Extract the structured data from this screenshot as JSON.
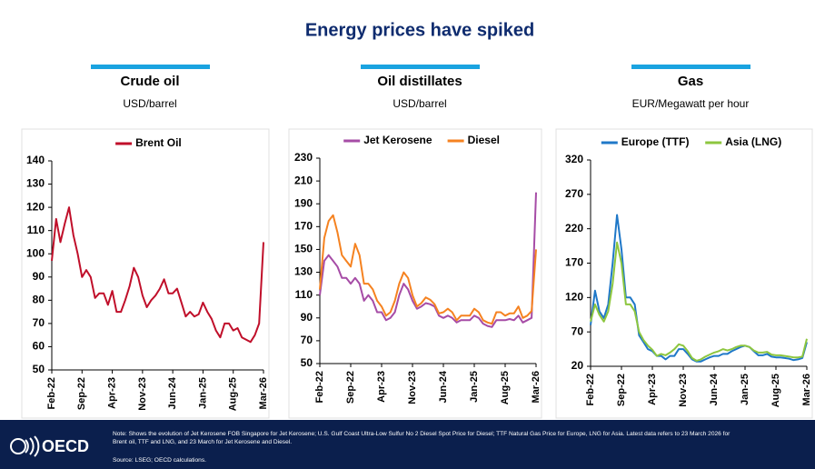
{
  "title": "Energy prices have spiked",
  "footer": {
    "logo": "OECD",
    "note": [
      "Note: Shows the evolution of Jet Kerosene FOB Singapore for Jet Kerosene; U.S. Gulf Coast Ultra-Low Sulfur No 2 Diesel Spot Price for Diesel; TTF Natural Gas Price for Europe, LNG for Asia. Latest data refers to 23 March 2026 for",
      "Brent oil, TTF and LNG, and 23 March for Jet Kerosene and Diesel."
    ],
    "source": "Source: LSEG; OECD calculations."
  },
  "chart_data": [
    {
      "type": "line",
      "title": "Crude oil",
      "subtitle": "USD/barrel",
      "legend": "top",
      "categories": [
        "Feb-22",
        null,
        null,
        null,
        null,
        null,
        null,
        "Sep-22",
        null,
        null,
        null,
        null,
        null,
        null,
        "Apr-23",
        null,
        null,
        null,
        null,
        null,
        null,
        "Nov-23",
        null,
        null,
        null,
        null,
        null,
        null,
        "Jun-24",
        null,
        null,
        null,
        null,
        null,
        null,
        "Jan-25",
        null,
        null,
        null,
        null,
        null,
        null,
        "Aug-25",
        null,
        null,
        null,
        null,
        null,
        null,
        "Mar-26"
      ],
      "ylim": [
        50,
        140
      ],
      "yticks": [
        50,
        60,
        70,
        80,
        90,
        100,
        110,
        120,
        130,
        140
      ],
      "series": [
        {
          "name": "Brent Oil",
          "color": "#c00f2a",
          "values": [
            97,
            115,
            105,
            113,
            120,
            108,
            100,
            90,
            93,
            90,
            81,
            83,
            83,
            78,
            84,
            75,
            75,
            80,
            86,
            94,
            90,
            82,
            77,
            80,
            82,
            85,
            89,
            83,
            83,
            85,
            79,
            73,
            75,
            73,
            74,
            79,
            75,
            72,
            67,
            64,
            70,
            70,
            67,
            68,
            64,
            63,
            62,
            65,
            70,
            105
          ]
        }
      ]
    },
    {
      "type": "line",
      "title": "Oil distillates",
      "subtitle": "USD/barrel",
      "legend": "top",
      "categories": [
        "Feb-22",
        null,
        null,
        null,
        null,
        null,
        null,
        "Sep-22",
        null,
        null,
        null,
        null,
        null,
        null,
        "Apr-23",
        null,
        null,
        null,
        null,
        null,
        null,
        "Nov-23",
        null,
        null,
        null,
        null,
        null,
        null,
        "Jun-24",
        null,
        null,
        null,
        null,
        null,
        null,
        "Jan-25",
        null,
        null,
        null,
        null,
        null,
        null,
        "Aug-25",
        null,
        null,
        null,
        null,
        null,
        null,
        "Mar-26"
      ],
      "ylim": [
        50,
        230
      ],
      "yticks": [
        50,
        70,
        90,
        110,
        130,
        150,
        170,
        190,
        210,
        230
      ],
      "series": [
        {
          "name": "Jet Kerosene",
          "color": "#a64ca6",
          "values": [
            110,
            140,
            145,
            140,
            135,
            125,
            125,
            120,
            125,
            120,
            105,
            110,
            105,
            95,
            95,
            88,
            90,
            95,
            110,
            120,
            115,
            105,
            98,
            100,
            103,
            102,
            100,
            92,
            90,
            92,
            90,
            86,
            88,
            88,
            88,
            92,
            90,
            85,
            83,
            82,
            88,
            88,
            88,
            89,
            88,
            92,
            86,
            88,
            90,
            200
          ]
        },
        {
          "name": "Diesel",
          "color": "#f58220",
          "values": [
            115,
            160,
            175,
            180,
            165,
            145,
            140,
            135,
            155,
            145,
            120,
            120,
            115,
            105,
            100,
            92,
            95,
            105,
            120,
            130,
            125,
            110,
            100,
            103,
            108,
            106,
            102,
            94,
            95,
            98,
            95,
            88,
            92,
            92,
            92,
            98,
            95,
            88,
            86,
            85,
            95,
            95,
            92,
            94,
            94,
            100,
            90,
            92,
            96,
            150
          ]
        }
      ]
    },
    {
      "type": "line",
      "title": "Gas",
      "subtitle": "EUR/Megawatt per hour",
      "legend": "top",
      "categories": [
        "Feb-22",
        null,
        null,
        null,
        null,
        null,
        null,
        "Sep-22",
        null,
        null,
        null,
        null,
        null,
        null,
        "Apr-23",
        null,
        null,
        null,
        null,
        null,
        null,
        "Nov-23",
        null,
        null,
        null,
        null,
        null,
        null,
        "Jun-24",
        null,
        null,
        null,
        null,
        null,
        null,
        "Jan-25",
        null,
        null,
        null,
        null,
        null,
        null,
        "Aug-25",
        null,
        null,
        null,
        null,
        null,
        null,
        "Mar-26"
      ],
      "ylim": [
        20,
        320
      ],
      "yticks": [
        20,
        70,
        120,
        170,
        220,
        270,
        320
      ],
      "series": [
        {
          "name": "Europe (TTF)",
          "color": "#1f78c8",
          "values": [
            80,
            130,
            100,
            90,
            110,
            170,
            240,
            190,
            120,
            120,
            110,
            65,
            55,
            45,
            42,
            35,
            35,
            30,
            35,
            35,
            45,
            45,
            38,
            30,
            27,
            27,
            30,
            33,
            35,
            35,
            38,
            38,
            42,
            45,
            48,
            50,
            48,
            42,
            36,
            36,
            38,
            34,
            33,
            33,
            32,
            31,
            29,
            30,
            32,
            55
          ]
        },
        {
          "name": "Asia (LNG)",
          "color": "#8dc63f",
          "values": [
            85,
            110,
            95,
            85,
            100,
            140,
            200,
            170,
            110,
            110,
            100,
            70,
            58,
            50,
            44,
            35,
            38,
            36,
            40,
            45,
            52,
            50,
            42,
            32,
            28,
            30,
            34,
            37,
            40,
            42,
            45,
            43,
            45,
            48,
            50,
            50,
            48,
            43,
            40,
            40,
            41,
            37,
            36,
            36,
            35,
            34,
            33,
            33,
            34,
            60
          ]
        }
      ]
    }
  ]
}
